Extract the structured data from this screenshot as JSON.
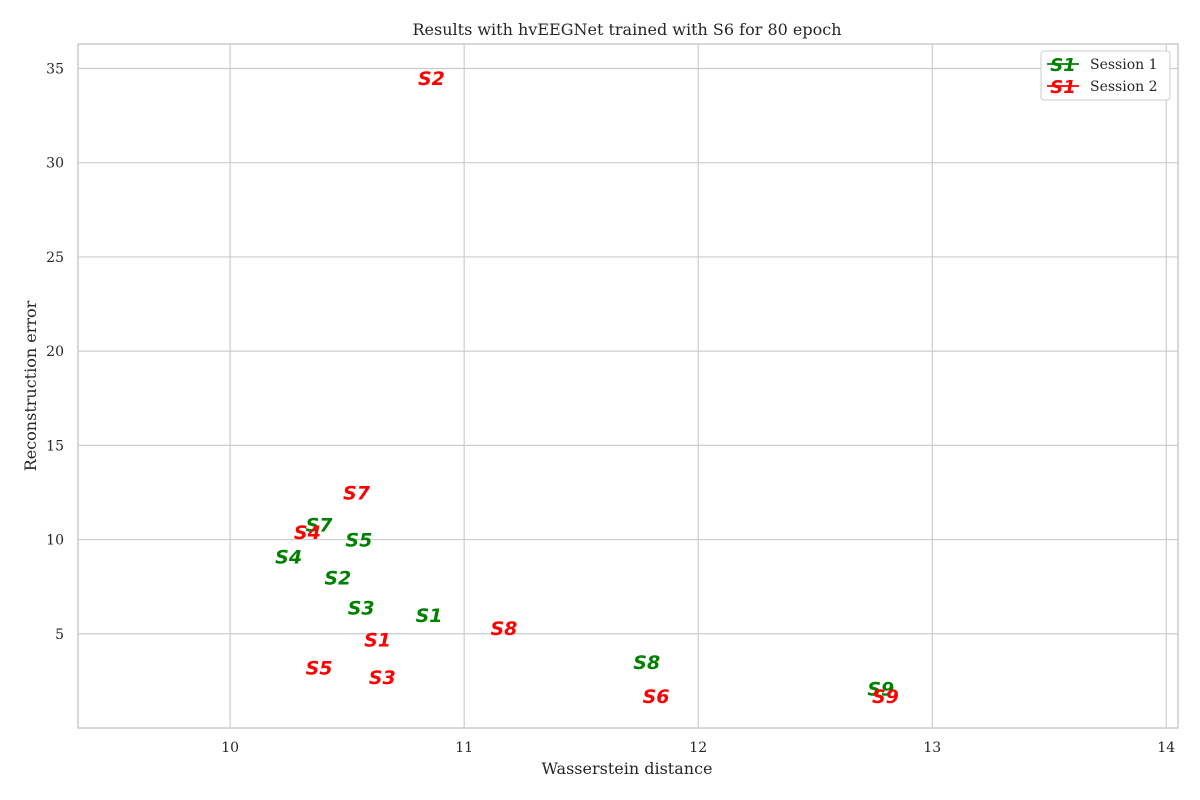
{
  "chart_data": {
    "type": "scatter",
    "title": "Results with hvEEGNet trained with S6 for 80 epoch",
    "xlabel": "Wasserstein distance",
    "ylabel": "Reconstruction error",
    "xlim": [
      9.35,
      14.05
    ],
    "ylim": [
      0.0,
      36.3
    ],
    "xticks": [
      10,
      11,
      12,
      13,
      14
    ],
    "yticks": [
      5,
      10,
      15,
      20,
      25,
      30,
      35
    ],
    "grid": true,
    "legend_position": "top-right",
    "series": [
      {
        "name": "Session 1",
        "color": "#008000",
        "marker": "S1",
        "points": [
          {
            "label": "S1",
            "x": 10.85,
            "y": 6.0
          },
          {
            "label": "S2",
            "x": 10.46,
            "y": 8.0
          },
          {
            "label": "S3",
            "x": 10.56,
            "y": 6.4
          },
          {
            "label": "S4",
            "x": 10.25,
            "y": 9.1
          },
          {
            "label": "S5",
            "x": 10.55,
            "y": 10.0
          },
          {
            "label": "S7",
            "x": 10.38,
            "y": 10.8
          },
          {
            "label": "S8",
            "x": 11.78,
            "y": 3.5
          },
          {
            "label": "S9",
            "x": 12.78,
            "y": 2.1
          }
        ]
      },
      {
        "name": "Session 2",
        "color": "#ff0000",
        "marker": "S1",
        "points": [
          {
            "label": "S1",
            "x": 10.63,
            "y": 4.7
          },
          {
            "label": "S2",
            "x": 10.86,
            "y": 34.5
          },
          {
            "label": "S3",
            "x": 10.65,
            "y": 2.7
          },
          {
            "label": "S4",
            "x": 10.33,
            "y": 10.4
          },
          {
            "label": "S5",
            "x": 10.38,
            "y": 3.2
          },
          {
            "label": "S6",
            "x": 11.82,
            "y": 1.7
          },
          {
            "label": "S7",
            "x": 10.54,
            "y": 12.5
          },
          {
            "label": "S8",
            "x": 11.17,
            "y": 5.3
          },
          {
            "label": "S9",
            "x": 12.8,
            "y": 1.7
          }
        ]
      }
    ]
  }
}
